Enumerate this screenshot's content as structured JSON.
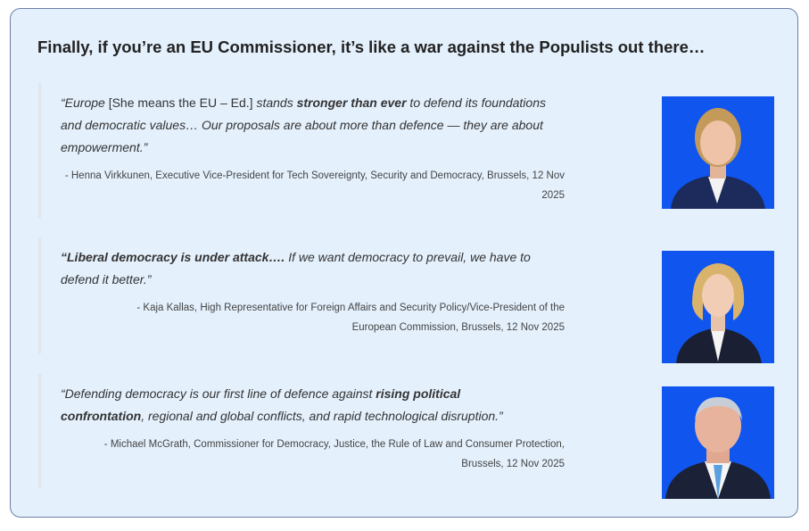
{
  "title": "Finally, if you’re an EU Commissioner, it’s like a war against the Populists out there…",
  "quotes": [
    {
      "segments": [
        {
          "text": "“Europe ",
          "style": "italic"
        },
        {
          "text": "[She means the EU – Ed.] ",
          "style": "upright"
        },
        {
          "text": "stands ",
          "style": "italic"
        },
        {
          "text": "stronger than ever",
          "style": "bold"
        },
        {
          "text": " to defend its foundations and democratic values… Our proposals are about more than defence — they are about empowerment.”",
          "style": "italic"
        }
      ],
      "attribution": "- Henna Virkkunen, Executive Vice-President for Tech Sovereignty, Security and Democracy, Brussels, 12 Nov 2025",
      "photo": "portrait-henna-virkkunen"
    },
    {
      "segments": [
        {
          "text": "“Liberal democracy is under attack….",
          "style": "bold"
        },
        {
          "text": " If we want democracy to prevail, we have to defend it better.”",
          "style": "italic"
        }
      ],
      "attribution": "- Kaja Kallas, High Representative for Foreign Affairs and Security Policy/Vice-President of the European Commission, Brussels, 12 Nov 2025",
      "photo": "portrait-kaja-kallas"
    },
    {
      "segments": [
        {
          "text": "“Defending democracy is our first line of defence against ",
          "style": "italic"
        },
        {
          "text": "rising political confrontation",
          "style": "bold"
        },
        {
          "text": ", regional and global conflicts, and rapid technological disruption.”",
          "style": "italic"
        }
      ],
      "attribution": "- Michael McGrath, Commissioner for Democracy, Justice, the Rule of Law and Consumer Protection, Brussels, 12 Nov 2025",
      "photo": "portrait-michael-mcgrath"
    }
  ],
  "colors": {
    "card_bg": "#e4f0fc",
    "card_border": "#6b7fa8",
    "photo_bg": "#0f55ee"
  }
}
